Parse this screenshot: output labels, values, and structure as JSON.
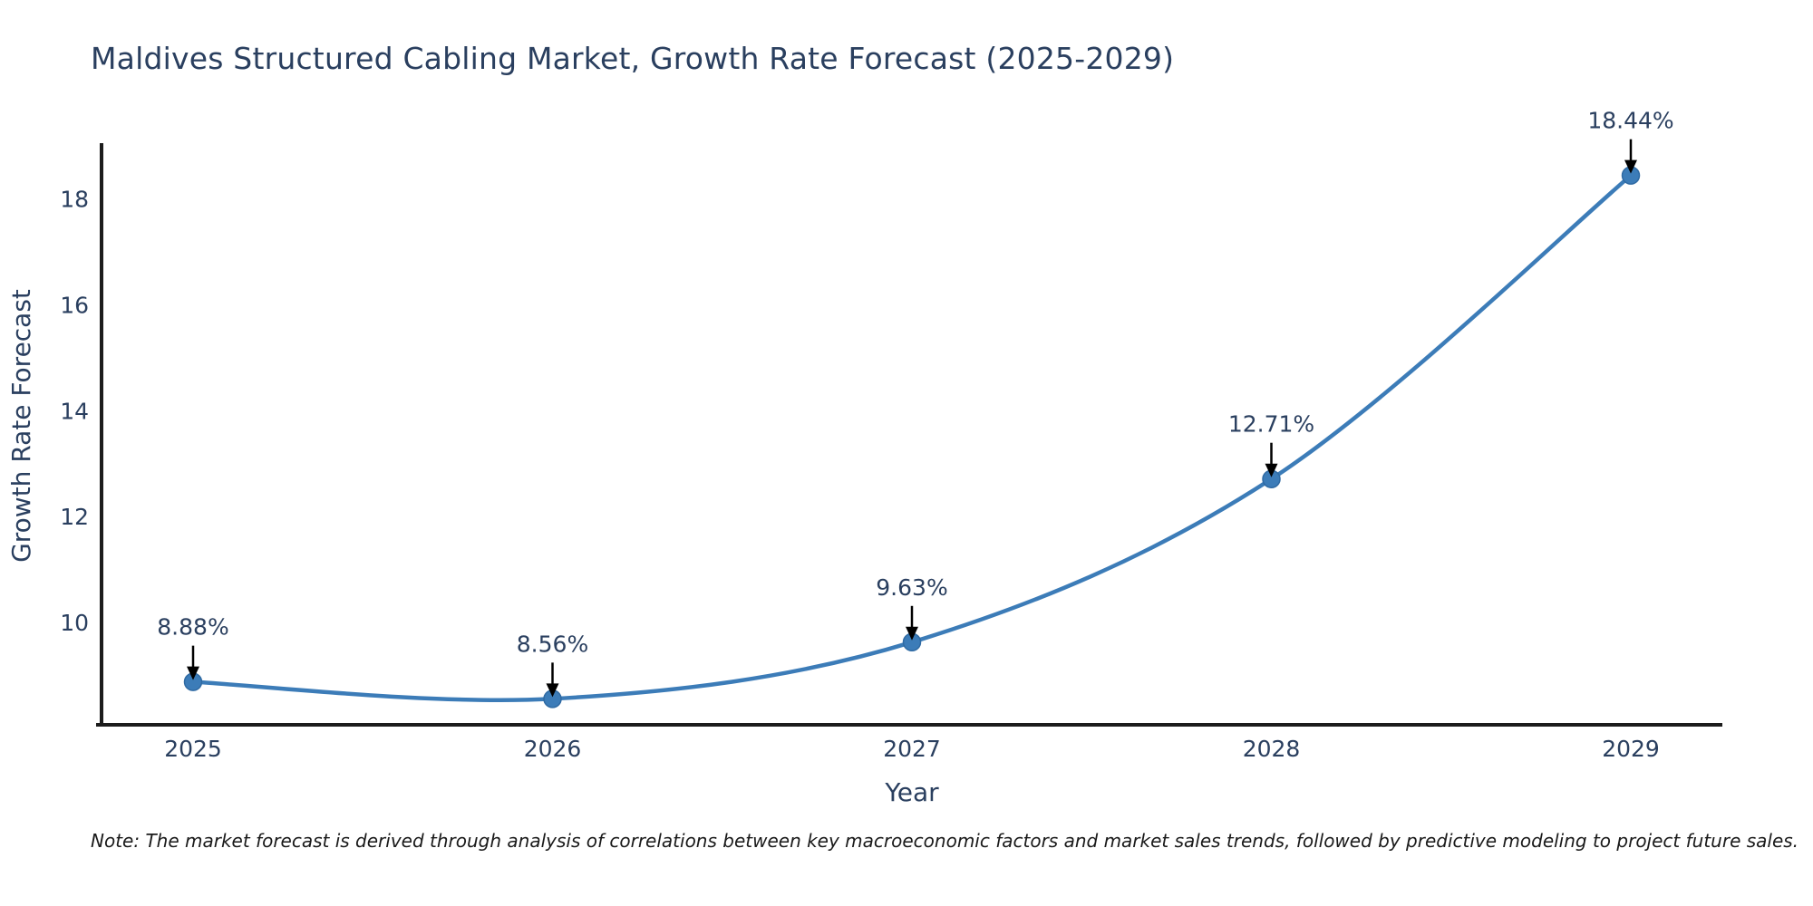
{
  "note": "Note: The market forecast is derived through analysis of correlations between key macroeconomic factors and market sales trends, followed by predictive modeling to project future sales.",
  "chart_data": {
    "type": "line",
    "title": "Maldives Structured Cabling Market, Growth Rate Forecast (2025-2029)",
    "xlabel": "Year",
    "ylabel": "Growth Rate Forecast",
    "categories": [
      "2025",
      "2026",
      "2027",
      "2028",
      "2029"
    ],
    "values": [
      8.88,
      8.56,
      9.63,
      12.71,
      18.44
    ],
    "point_labels": [
      "8.88%",
      "8.56%",
      "9.63%",
      "12.71%",
      "18.44%"
    ],
    "yticks": [
      10,
      12,
      14,
      16,
      18
    ],
    "ylim": [
      8.07,
      19.05
    ],
    "grid": false,
    "legend": false,
    "line_color": "#3c7cb8",
    "marker_color": "#3c7cb8",
    "marker_edge_color": "#2f6aa3",
    "axis_color": "#1c1c1c",
    "text_color": "#2a3f5f",
    "arrow_color": "#000000"
  }
}
